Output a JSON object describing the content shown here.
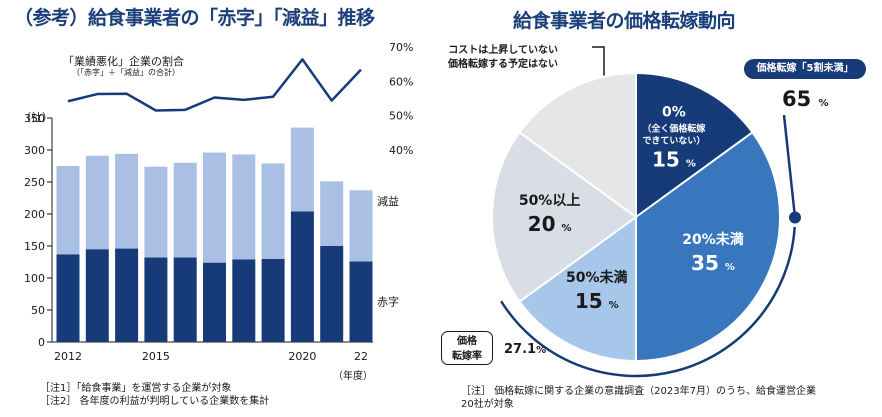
{
  "left": {
    "title": "（参考）給食事業者の「赤字」「減益」推移",
    "rate_label": "「業績悪化」企業の割合",
    "rate_sublabel": "（「赤字」＋「減益」の合計）",
    "notes": [
      "［注1］「給食事業」を運営する企業が対象",
      "［注2］ 各年度の利益が判明している企業数を集計"
    ]
  },
  "right": {
    "title": "給食事業者の価格転嫁動向",
    "unchanged_note_lines": [
      "コストは上昇していない",
      "価格転嫁する予定はない"
    ],
    "badge_label": "価格転嫁「5割未満」",
    "badge_value": "65",
    "badge_unit": "%",
    "rate_box_lines": [
      "価格",
      "転嫁率"
    ],
    "rate_value": "27.1",
    "rate_unit": "%",
    "notes": [
      "［注］ 価格転嫁に関する企業の意識調査（2023年7月）のうち、給食運営企業",
      "20社が対象"
    ]
  },
  "colors": {
    "title": "#1a3f7a",
    "dark_navy": "#163b78",
    "light_blue": "#a9bfe4",
    "mid_blue": "#3876bd",
    "sky_blue": "#a6c6ea",
    "pale_gray": "#d9dde6",
    "gray": "#e6e6e6",
    "line": "#163b78"
  },
  "chart_data": [
    {
      "type": "bar",
      "stacked": true,
      "categories": [
        "2012",
        "2013",
        "2014",
        "2015",
        "2016",
        "2017",
        "2018",
        "2019",
        "2020",
        "2021",
        "2022"
      ],
      "x_tick_labels": [
        "2012",
        "",
        "",
        "2015",
        "",
        "",
        "",
        "",
        "2020",
        "",
        "22"
      ],
      "xlabel": "（年度）",
      "ylabel": "（社）",
      "ylim": [
        0,
        350
      ],
      "y_ticks": [
        "0",
        "50",
        "100",
        "150",
        "200",
        "250",
        "300",
        "350"
      ],
      "grid": false,
      "series": [
        {
          "name": "赤字",
          "color": "#163b78",
          "values": [
            137,
            145,
            146,
            132,
            132,
            124,
            129,
            130,
            204,
            150,
            126
          ]
        },
        {
          "name": "減益",
          "color": "#a9bfe4",
          "values": [
            138,
            146,
            148,
            142,
            148,
            172,
            164,
            149,
            131,
            101,
            111
          ]
        }
      ],
      "secondary_axis": {
        "type": "line",
        "ylim": [
          40,
          70
        ],
        "ticks": [
          "40%",
          "50%",
          "60%",
          "70%"
        ],
        "values": [
          54.2,
          56.3,
          56.4,
          51.5,
          51.7,
          55.3,
          54.6,
          55.5,
          66.4,
          54.4,
          63.4
        ]
      }
    },
    {
      "type": "pie",
      "start": "12 o'clock",
      "direction": "clockwise",
      "slices": [
        {
          "label": "0%",
          "sublabel_lines": [
            "（全く価格転嫁",
            "できていない）"
          ],
          "value": 15,
          "unit": "%",
          "color": "#163b78",
          "text_color": "#ffffff"
        },
        {
          "label": "20%未満",
          "value": 35,
          "unit": "%",
          "color": "#3876bd",
          "text_color": "#ffffff"
        },
        {
          "label": "50%未満",
          "value": 15,
          "unit": "%",
          "color": "#a6c6ea",
          "text_color": "#1a1a1a"
        },
        {
          "label": "50%以上",
          "value": 20,
          "unit": "%",
          "color": "#d9dde6",
          "text_color": "#1a1a1a"
        },
        {
          "label": "",
          "value": 15,
          "unit": "",
          "color": "#e6e6e6",
          "text_color": "#1a1a1a"
        }
      ]
    }
  ]
}
